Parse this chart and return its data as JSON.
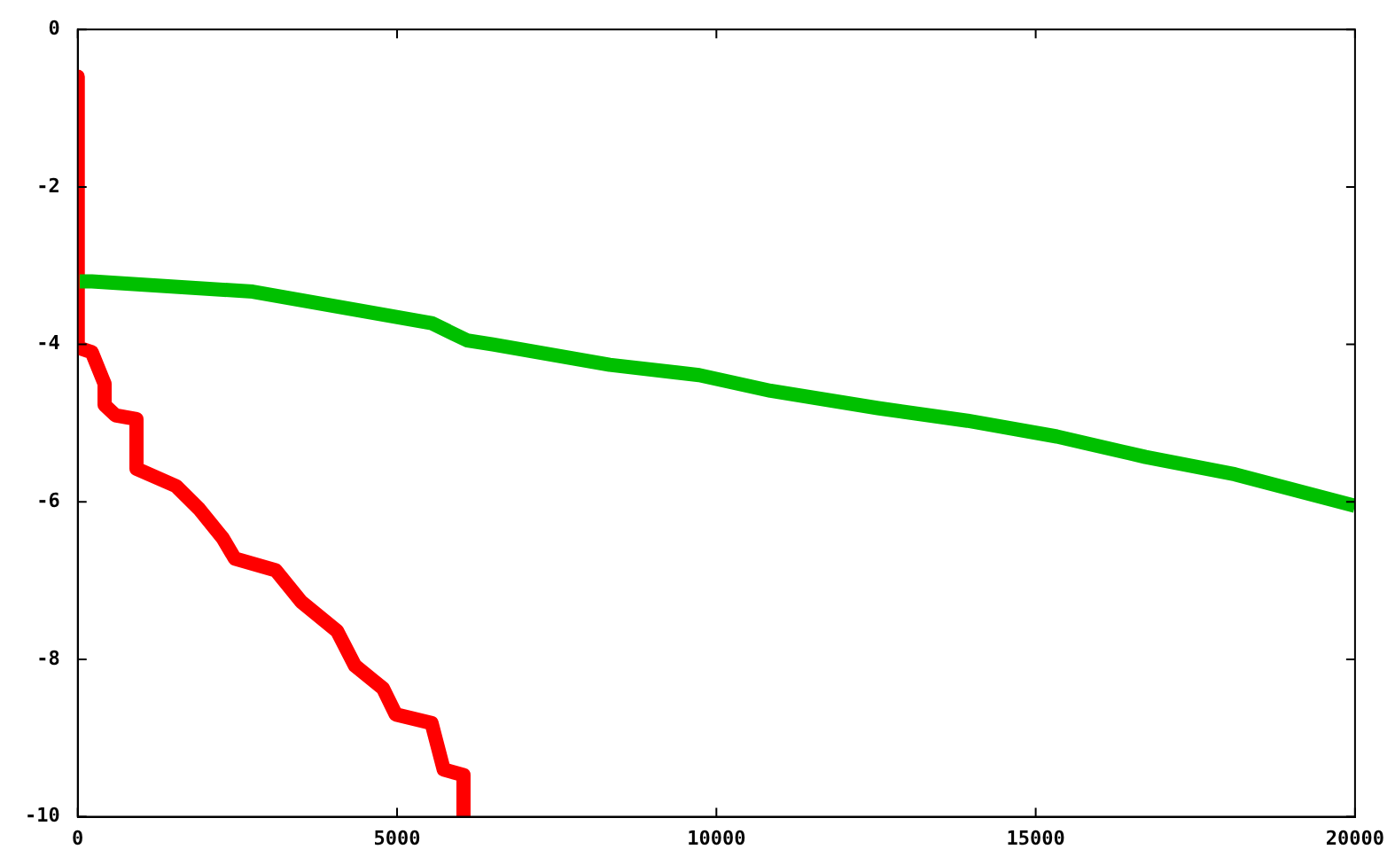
{
  "chart_data": {
    "type": "line",
    "xlim": [
      0,
      20000
    ],
    "xticks": [
      0,
      5000,
      10000,
      15000,
      20000
    ],
    "ylim": [
      -10,
      0
    ],
    "yticks": [
      -10,
      -8,
      -6,
      -4,
      -2,
      0
    ],
    "grid": false,
    "legend": false,
    "marker": "none",
    "series": [
      {
        "color": "#00c000",
        "x": [
          30,
          220,
          2740,
          5540,
          6100,
          6500,
          8330,
          9730,
          10850,
          12530,
          13930,
          15330,
          16720,
          18120,
          20000
        ],
        "values": [
          -3.2,
          -3.2,
          -3.33,
          -3.73,
          -3.95,
          -4.0,
          -4.26,
          -4.39,
          -4.59,
          -4.81,
          -4.97,
          -5.17,
          -5.43,
          -5.65,
          -6.05
        ]
      },
      {
        "color": "#ff0000",
        "x": [
          0,
          0,
          220,
          420,
          420,
          590,
          920,
          920,
          1540,
          1900,
          2270,
          2460,
          3100,
          3500,
          4060,
          4340,
          4780,
          4980,
          5540,
          5730,
          6040,
          6040
        ],
        "values": [
          -0.6,
          -4.04,
          -4.1,
          -4.5,
          -4.77,
          -4.9,
          -4.95,
          -5.58,
          -5.8,
          -6.09,
          -6.46,
          -6.72,
          -6.87,
          -7.27,
          -7.64,
          -8.08,
          -8.37,
          -8.7,
          -8.81,
          -9.4,
          -9.47,
          -10
        ]
      }
    ]
  }
}
